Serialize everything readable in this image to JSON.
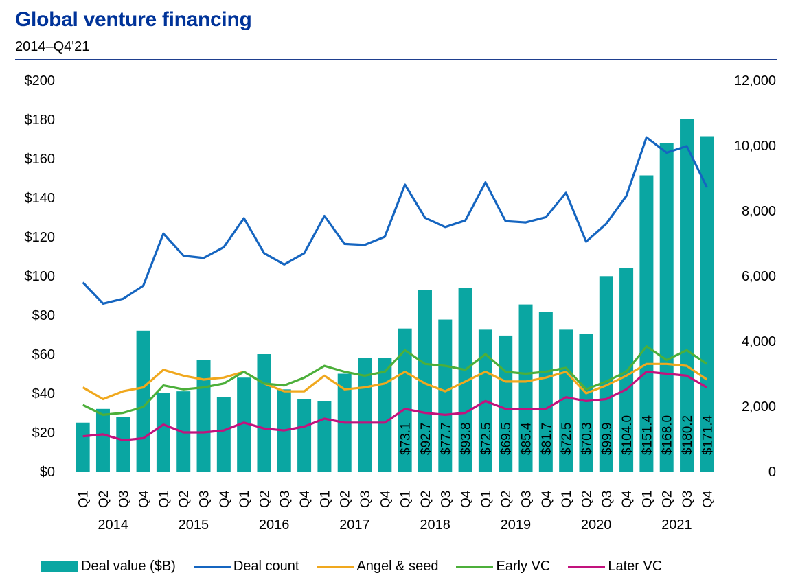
{
  "header": {
    "title": "Global venture financing",
    "subtitle": "2014–Q4'21"
  },
  "colors": {
    "deal_value": "#0aa6a2",
    "deal_count": "#1565c0",
    "angel_seed": "#f0a81e",
    "early_vc": "#4caf3a",
    "later_vc": "#c2127d",
    "title": "#003399"
  },
  "chart_data": {
    "type": "bar",
    "title": "Global venture financing",
    "subtitle": "2014–Q4'21",
    "categories": [
      "Q1",
      "Q2",
      "Q3",
      "Q4",
      "Q1",
      "Q2",
      "Q3",
      "Q4",
      "Q1",
      "Q2",
      "Q3",
      "Q4",
      "Q1",
      "Q2",
      "Q3",
      "Q4",
      "Q1",
      "Q2",
      "Q3",
      "Q4",
      "Q1",
      "Q2",
      "Q3",
      "Q4",
      "Q1",
      "Q2",
      "Q3",
      "Q4",
      "Q1",
      "Q2",
      "Q3",
      "Q4"
    ],
    "years": [
      "2014",
      "2015",
      "2016",
      "2017",
      "2018",
      "2019",
      "2020",
      "2021"
    ],
    "left_axis": {
      "ylim": [
        0,
        200
      ],
      "ticks": [
        "$0",
        "$20",
        "$40",
        "$60",
        "$80",
        "$100",
        "$120",
        "$140",
        "$160",
        "$180",
        "$200"
      ]
    },
    "right_axis": {
      "ylim": [
        0,
        12000
      ],
      "ticks": [
        "0",
        "2,000",
        "4,000",
        "6,000",
        "8,000",
        "10,000",
        "12,000"
      ]
    },
    "series": [
      {
        "name": "Deal value ($B)",
        "type": "bar",
        "axis": "left",
        "values": [
          25,
          32,
          28,
          72,
          40,
          41,
          57,
          38,
          48,
          60,
          42,
          37,
          36,
          50,
          58,
          58,
          73.1,
          92.7,
          77.7,
          93.8,
          72.5,
          69.5,
          85.4,
          81.7,
          72.5,
          70.3,
          99.9,
          104.0,
          151.4,
          168.0,
          180.2,
          171.4
        ]
      },
      {
        "name": "Deal count",
        "type": "line",
        "axis": "right",
        "values": [
          5800,
          5150,
          5300,
          5700,
          7300,
          6620,
          6550,
          6880,
          7770,
          6700,
          6350,
          6700,
          7840,
          6980,
          6950,
          7200,
          8800,
          7780,
          7500,
          7700,
          8870,
          7680,
          7640,
          7800,
          8550,
          7050,
          7600,
          8450,
          10250,
          9780,
          9980,
          8720
        ]
      },
      {
        "name": "Angel & seed",
        "type": "line",
        "axis": "left",
        "values": [
          43,
          37,
          41,
          43,
          52,
          49,
          47,
          48,
          51,
          45,
          41,
          41,
          49,
          42,
          43,
          45,
          51,
          45,
          41,
          46,
          51,
          46,
          46,
          48,
          51,
          40,
          44,
          49,
          55,
          55,
          54,
          47
        ]
      },
      {
        "name": "Early VC",
        "type": "line",
        "axis": "left",
        "values": [
          34,
          29,
          30,
          33,
          44,
          42,
          43,
          45,
          51,
          45,
          44,
          48,
          54,
          51,
          49,
          51,
          62,
          55,
          54,
          52,
          60,
          51,
          50,
          51,
          53,
          42,
          46,
          51,
          64,
          57,
          62,
          55
        ]
      },
      {
        "name": "Later VC",
        "type": "line",
        "axis": "left",
        "values": [
          18,
          19,
          16,
          17,
          24,
          20,
          20,
          21,
          25,
          22,
          21,
          23,
          27,
          25,
          25,
          25,
          32,
          30,
          29,
          30,
          36,
          32,
          32,
          32,
          38,
          36,
          37,
          42,
          51,
          50,
          49,
          43
        ]
      }
    ],
    "data_labels": [
      "",
      "",
      "",
      "",
      "",
      "",
      "",
      "",
      "",
      "",
      "",
      "",
      "",
      "",
      "",
      "",
      "$73.1",
      "$92.7",
      "$77.7",
      "$93.8",
      "$72.5",
      "$69.5",
      "$85.4",
      "$81.7",
      "$72.5",
      "$70.3",
      "$99.9",
      "$104.0",
      "$151.4",
      "$168.0",
      "$180.2",
      "$171.4"
    ],
    "legend": "bottom",
    "grid": false
  }
}
